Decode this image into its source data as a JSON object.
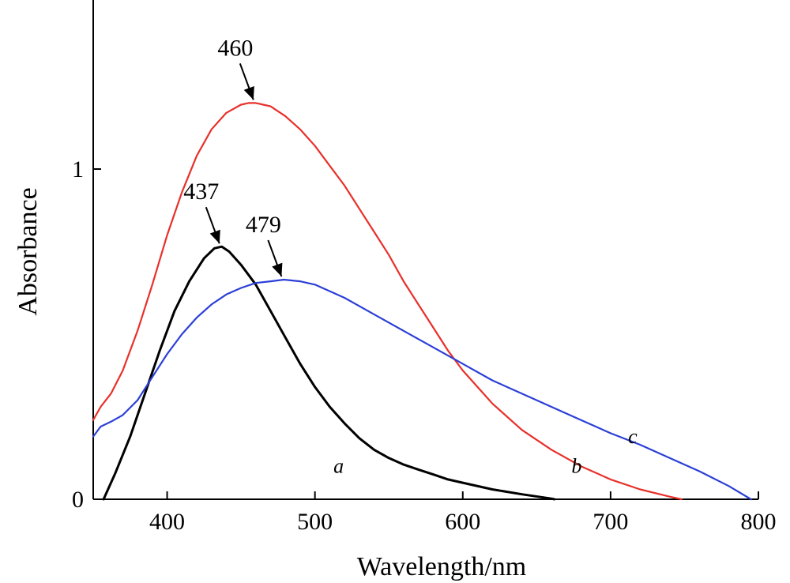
{
  "chart_data": {
    "type": "line",
    "xlabel": "Wavelength/nm",
    "ylabel": "Absorbance",
    "xlim": [
      350,
      800
    ],
    "ylim": [
      0,
      1.5
    ],
    "xticks": [
      400,
      500,
      600,
      700,
      800
    ],
    "yticks": [
      0,
      1
    ],
    "grid": false,
    "legend": "none",
    "series": [
      {
        "name": "a",
        "color": "#000000",
        "x": [
          357,
          365,
          375,
          385,
          395,
          405,
          415,
          425,
          432,
          437,
          442,
          450,
          460,
          470,
          480,
          490,
          500,
          510,
          520,
          530,
          540,
          550,
          560,
          570,
          580,
          590,
          600,
          620,
          640,
          660,
          662
        ],
        "y": [
          0.0,
          0.08,
          0.19,
          0.32,
          0.45,
          0.57,
          0.66,
          0.73,
          0.76,
          0.765,
          0.75,
          0.71,
          0.65,
          0.57,
          0.49,
          0.41,
          0.34,
          0.28,
          0.23,
          0.185,
          0.15,
          0.125,
          0.105,
          0.09,
          0.075,
          0.06,
          0.05,
          0.03,
          0.015,
          0.002,
          0.0
        ]
      },
      {
        "name": "b",
        "color": "#e8302a",
        "x": [
          350,
          355,
          362,
          370,
          380,
          390,
          400,
          410,
          420,
          430,
          440,
          450,
          455,
          460,
          465,
          470,
          480,
          490,
          500,
          510,
          520,
          530,
          540,
          550,
          560,
          570,
          580,
          590,
          600,
          610,
          620,
          640,
          660,
          680,
          700,
          720,
          740,
          748
        ],
        "y": [
          0.24,
          0.28,
          0.32,
          0.39,
          0.51,
          0.65,
          0.8,
          0.93,
          1.04,
          1.12,
          1.17,
          1.195,
          1.2,
          1.2,
          1.195,
          1.19,
          1.16,
          1.12,
          1.07,
          1.01,
          0.95,
          0.88,
          0.81,
          0.74,
          0.66,
          0.59,
          0.52,
          0.45,
          0.39,
          0.34,
          0.29,
          0.21,
          0.15,
          0.1,
          0.06,
          0.03,
          0.008,
          0.0
        ]
      },
      {
        "name": "c",
        "color": "#2b3fd6",
        "x": [
          350,
          355,
          362,
          370,
          380,
          390,
          400,
          410,
          420,
          430,
          440,
          450,
          460,
          470,
          479,
          490,
          500,
          520,
          540,
          560,
          580,
          600,
          620,
          640,
          660,
          680,
          700,
          720,
          740,
          760,
          780,
          795
        ],
        "y": [
          0.19,
          0.22,
          0.235,
          0.255,
          0.3,
          0.37,
          0.44,
          0.5,
          0.55,
          0.59,
          0.62,
          0.64,
          0.655,
          0.66,
          0.665,
          0.66,
          0.65,
          0.61,
          0.56,
          0.51,
          0.46,
          0.41,
          0.36,
          0.32,
          0.28,
          0.24,
          0.2,
          0.165,
          0.125,
          0.085,
          0.04,
          0.0
        ]
      }
    ],
    "annotations": [
      {
        "text": "460",
        "x": 460,
        "y": 1.2
      },
      {
        "text": "437",
        "x": 437,
        "y": 0.765
      },
      {
        "text": "479",
        "x": 479,
        "y": 0.665
      },
      {
        "text": "a",
        "x": 516,
        "y": 0.08
      },
      {
        "text": "b",
        "x": 677,
        "y": 0.08
      },
      {
        "text": "c",
        "x": 715,
        "y": 0.17
      }
    ]
  }
}
